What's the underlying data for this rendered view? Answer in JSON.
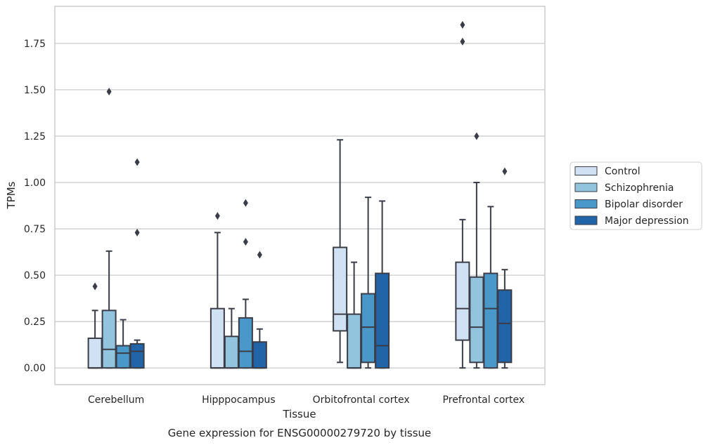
{
  "caption": "Gene expression for ENSG00000279720 by tissue",
  "chart_data": {
    "type": "boxplot",
    "xlabel": "Tissue",
    "ylabel": "TPMs",
    "ylim": [
      -0.09,
      1.95
    ],
    "yticks": [
      0.0,
      0.25,
      0.5,
      0.75,
      1.0,
      1.25,
      1.5,
      1.75
    ],
    "ytick_labels": [
      "0.00",
      "0.25",
      "0.50",
      "0.75",
      "1.00",
      "1.25",
      "1.50",
      "1.75"
    ],
    "grid": "horizontal",
    "legend_position": "right",
    "categories": [
      "Cerebellum",
      "Hipppocampus",
      "Orbitofrontal cortex",
      "Prefrontal cortex"
    ],
    "series": [
      {
        "name": "Control",
        "color": "#cfe1f2",
        "boxes": [
          {
            "whislo": 0.0,
            "q1": 0.0,
            "med": 0.0,
            "q3": 0.16,
            "whishi": 0.31,
            "fliers": [
              0.44
            ]
          },
          {
            "whislo": 0.0,
            "q1": 0.0,
            "med": 0.0,
            "q3": 0.32,
            "whishi": 0.73,
            "fliers": [
              0.82
            ]
          },
          {
            "whislo": 0.03,
            "q1": 0.2,
            "med": 0.29,
            "q3": 0.65,
            "whishi": 1.23,
            "fliers": []
          },
          {
            "whislo": 0.0,
            "q1": 0.15,
            "med": 0.32,
            "q3": 0.57,
            "whishi": 0.8,
            "fliers": [
              1.76,
              1.85
            ]
          }
        ]
      },
      {
        "name": "Schizophrenia",
        "color": "#93c4de",
        "boxes": [
          {
            "whislo": 0.0,
            "q1": 0.0,
            "med": 0.1,
            "q3": 0.31,
            "whishi": 0.63,
            "fliers": [
              1.49
            ]
          },
          {
            "whislo": 0.0,
            "q1": 0.0,
            "med": 0.0,
            "q3": 0.17,
            "whishi": 0.32,
            "fliers": []
          },
          {
            "whislo": 0.0,
            "q1": 0.0,
            "med": 0.0,
            "q3": 0.29,
            "whishi": 0.57,
            "fliers": []
          },
          {
            "whislo": 0.0,
            "q1": 0.03,
            "med": 0.22,
            "q3": 0.49,
            "whishi": 1.0,
            "fliers": [
              1.25
            ]
          }
        ]
      },
      {
        "name": "Bipolar disorder",
        "color": "#4a98c9",
        "boxes": [
          {
            "whislo": 0.0,
            "q1": 0.0,
            "med": 0.08,
            "q3": 0.12,
            "whishi": 0.26,
            "fliers": []
          },
          {
            "whislo": 0.0,
            "q1": 0.0,
            "med": 0.09,
            "q3": 0.27,
            "whishi": 0.37,
            "fliers": [
              0.68,
              0.89
            ]
          },
          {
            "whislo": 0.0,
            "q1": 0.03,
            "med": 0.22,
            "q3": 0.4,
            "whishi": 0.92,
            "fliers": []
          },
          {
            "whislo": 0.0,
            "q1": 0.0,
            "med": 0.32,
            "q3": 0.51,
            "whishi": 0.87,
            "fliers": []
          }
        ]
      },
      {
        "name": "Major depression",
        "color": "#2264a8",
        "boxes": [
          {
            "whislo": 0.0,
            "q1": 0.0,
            "med": 0.09,
            "q3": 0.13,
            "whishi": 0.15,
            "fliers": [
              0.73,
              1.11
            ]
          },
          {
            "whislo": 0.0,
            "q1": 0.0,
            "med": 0.0,
            "q3": 0.14,
            "whishi": 0.21,
            "fliers": [
              0.61
            ]
          },
          {
            "whislo": 0.0,
            "q1": 0.0,
            "med": 0.12,
            "q3": 0.51,
            "whishi": 0.9,
            "fliers": []
          },
          {
            "whislo": 0.0,
            "q1": 0.03,
            "med": 0.24,
            "q3": 0.42,
            "whishi": 0.53,
            "fliers": [
              1.06
            ]
          }
        ]
      }
    ],
    "styles": {
      "edge_color": "#3a3d47",
      "grid_color": "#cccccc",
      "frame_color": "#cccccc",
      "flier_color": "#3a3d47"
    }
  }
}
